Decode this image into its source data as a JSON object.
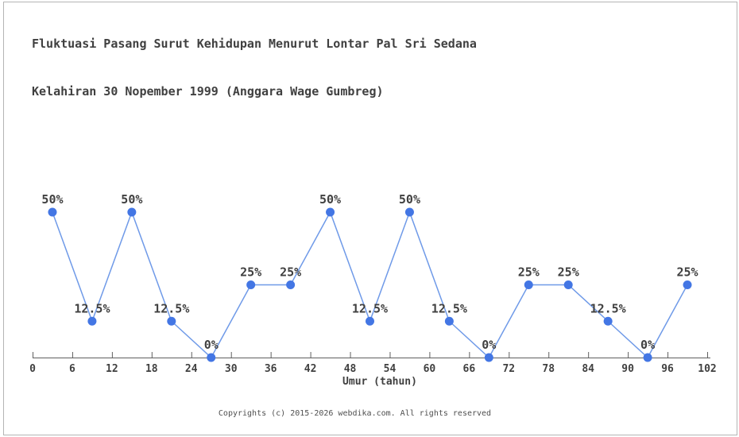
{
  "title": {
    "line1": "Fluktuasi Pasang Surut Kehidupan Menurut Lontar Pal Sri Sedana",
    "line2": "Kelahiran 30 Nopember 1999 (Anggara Wage Gumbreg)"
  },
  "footer": {
    "copyright": "Copyrights (c) 2015-2026 webdika.com. All rights reserved"
  },
  "chart_data": {
    "type": "line",
    "title": "Fluktuasi Pasang Surut Kehidupan Menurut Lontar Pal Sri Sedana Kelahiran 30 Nopember 1999 (Anggara Wage Gumbreg)",
    "x": [
      3,
      9,
      15,
      21,
      27,
      33,
      39,
      45,
      51,
      57,
      63,
      69,
      75,
      81,
      87,
      93,
      99
    ],
    "values": [
      50,
      12.5,
      50,
      12.5,
      0,
      25,
      25,
      50,
      12.5,
      50,
      12.5,
      0,
      25,
      25,
      12.5,
      0,
      25
    ],
    "point_labels": [
      "50%",
      "12.5%",
      "50%",
      "12.5%",
      "0%",
      "25%",
      "25%",
      "50%",
      "12.5%",
      "50%",
      "12.5%",
      "0%",
      "25%",
      "25%",
      "12.5%",
      "0%",
      "25%"
    ],
    "x_ticks": [
      0,
      6,
      12,
      18,
      24,
      30,
      36,
      42,
      48,
      54,
      60,
      66,
      72,
      78,
      84,
      90,
      96,
      102
    ],
    "xlabel": "Umur (tahun)",
    "ylabel": "",
    "xlim": [
      0,
      102
    ],
    "ylim": [
      0,
      50
    ],
    "grid": false,
    "legend": "none",
    "colors": {
      "marker": "#4376e4",
      "line": "#6f9ae8",
      "label_text": "#404040",
      "axis": "#5f5f5f",
      "title_text": "#404040",
      "footer_text": "#4f4f4f",
      "border": "#b4b4b4",
      "background": "#ffffff"
    }
  }
}
